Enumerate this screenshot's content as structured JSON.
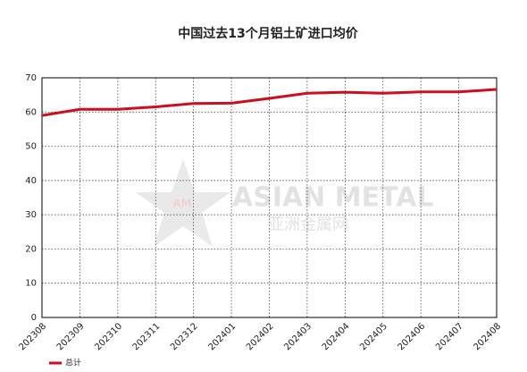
{
  "chart_data": {
    "type": "line",
    "title": "中国过去13个月铝土矿进口均价",
    "categories": [
      "202308",
      "202309",
      "202310",
      "202311",
      "202312",
      "202401",
      "202402",
      "202403",
      "202404",
      "202405",
      "202406",
      "202407",
      "202408"
    ],
    "series": [
      {
        "name": "总计",
        "color": "#cc0e1d",
        "values": [
          59,
          60.8,
          60.8,
          61.5,
          62.5,
          62.6,
          64,
          65.5,
          65.8,
          65.5,
          65.9,
          65.9,
          66.6
        ]
      }
    ],
    "ylim": [
      0,
      70
    ],
    "yticks": [
      0,
      10,
      20,
      30,
      40,
      50,
      60,
      70
    ],
    "grid": true,
    "legend": "bottom-left",
    "watermark": {
      "logo": "AM",
      "text": "ASIAN METAL",
      "subtext": "亚洲金属网"
    }
  }
}
